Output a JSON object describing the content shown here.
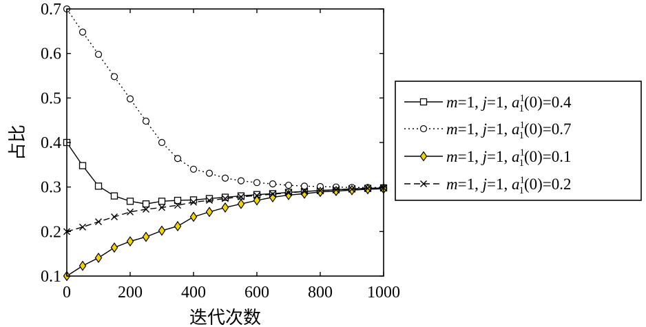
{
  "chart_data": {
    "type": "line",
    "xlabel": "迭代次数",
    "ylabel": "占比",
    "xlim": [
      0,
      1000
    ],
    "ylim": [
      0.1,
      0.7
    ],
    "xticks": [
      "0",
      "200",
      "400",
      "600",
      "800",
      "1000"
    ],
    "yticks": [
      "0.1",
      "0.2",
      "0.3",
      "0.4",
      "0.5",
      "0.6",
      "0.7"
    ],
    "grid": false,
    "legend_position": "right",
    "x": [
      0,
      50,
      100,
      150,
      200,
      250,
      300,
      350,
      400,
      450,
      500,
      550,
      600,
      650,
      700,
      750,
      800,
      850,
      900,
      950,
      1000
    ],
    "series": [
      {
        "name": "m=1, j=1, a_1^1(0)=0.4",
        "legend": {
          "m": "m",
          "j": "j",
          "a": "a",
          "sup": "1",
          "sub": "1",
          "rest": "(0)=0.4",
          "eq1": "=1, ",
          "eq2": "=1, "
        },
        "line_style": "solid",
        "marker": "square",
        "color": "#000000",
        "marker_fill": "#ffffff",
        "values": [
          0.4,
          0.348,
          0.302,
          0.28,
          0.268,
          0.262,
          0.268,
          0.27,
          0.271,
          0.274,
          0.277,
          0.28,
          0.283,
          0.285,
          0.288,
          0.29,
          0.292,
          0.294,
          0.296,
          0.297,
          0.298
        ]
      },
      {
        "name": "m=1, j=1, a_1^1(0)=0.7",
        "legend": {
          "m": "m",
          "j": "j",
          "a": "a",
          "sup": "1",
          "sub": "1",
          "rest": "(0)=0.7",
          "eq1": "=1, ",
          "eq2": "=1, "
        },
        "line_style": "dotted",
        "marker": "circle",
        "color": "#000000",
        "marker_fill": "#ffffff",
        "values": [
          0.7,
          0.648,
          0.598,
          0.548,
          0.498,
          0.448,
          0.4,
          0.364,
          0.34,
          0.331,
          0.32,
          0.314,
          0.31,
          0.307,
          0.304,
          0.302,
          0.301,
          0.3,
          0.299,
          0.299,
          0.299
        ]
      },
      {
        "name": "m=1, j=1, a_1^1(0)=0.1",
        "legend": {
          "m": "m",
          "j": "j",
          "a": "a",
          "sup": "1",
          "sub": "1",
          "rest": "(0)=0.1",
          "eq1": "=1, ",
          "eq2": "=1, "
        },
        "line_style": "solid",
        "marker": "diamond",
        "color": "#000000",
        "marker_fill": "#f2d500",
        "values": [
          0.1,
          0.123,
          0.141,
          0.164,
          0.178,
          0.188,
          0.202,
          0.212,
          0.233,
          0.244,
          0.254,
          0.262,
          0.27,
          0.277,
          0.282,
          0.285,
          0.289,
          0.291,
          0.293,
          0.295,
          0.296
        ]
      },
      {
        "name": "m=1, j=1, a_1^1(0)=0.2",
        "legend": {
          "m": "m",
          "j": "j",
          "a": "a",
          "sup": "1",
          "sub": "1",
          "rest": "(0)=0.2",
          "eq1": "=1, ",
          "eq2": "=1, "
        },
        "line_style": "dashed",
        "marker": "x",
        "color": "#000000",
        "marker_fill": "none",
        "values": [
          0.2,
          0.21,
          0.222,
          0.233,
          0.244,
          0.25,
          0.254,
          0.259,
          0.266,
          0.27,
          0.274,
          0.278,
          0.281,
          0.284,
          0.287,
          0.29,
          0.292,
          0.294,
          0.295,
          0.297,
          0.298
        ]
      }
    ]
  }
}
